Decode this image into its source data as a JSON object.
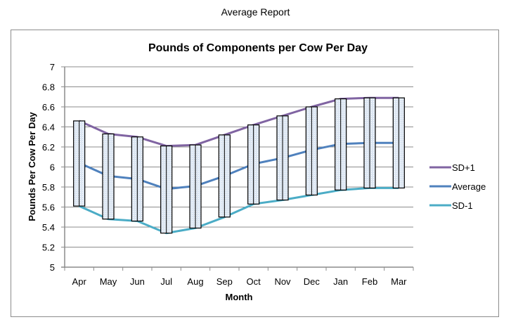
{
  "report_title": "Average Report",
  "chart_data": {
    "type": "line",
    "title": "Pounds of Components per Cow Per Day",
    "xlabel": "Month",
    "ylabel": "Pounds Per Cow Per Day",
    "ylim": [
      5,
      7
    ],
    "yticks": [
      5,
      5.2,
      5.4,
      5.6,
      5.8,
      6,
      6.2,
      6.4,
      6.6,
      6.8,
      7
    ],
    "ytick_labels": [
      "5",
      "5.2",
      "5.4",
      "5.6",
      "5.8",
      "6",
      "6.2",
      "6.4",
      "6.6",
      "6.8",
      "7"
    ],
    "grid": true,
    "legend_position": "right",
    "categories": [
      "Apr",
      "May",
      "Jun",
      "Jul",
      "Aug",
      "Sep",
      "Oct",
      "Nov",
      "Dec",
      "Jan",
      "Feb",
      "Mar"
    ],
    "series": [
      {
        "name": "SD+1",
        "color": "#8064A2",
        "values": [
          6.46,
          6.33,
          6.3,
          6.21,
          6.22,
          6.32,
          6.42,
          6.51,
          6.6,
          6.68,
          6.69,
          6.69
        ]
      },
      {
        "name": "Average",
        "color": "#4F81BD",
        "values": [
          6.04,
          5.91,
          5.88,
          5.78,
          5.81,
          5.91,
          6.03,
          6.09,
          6.17,
          6.23,
          6.24,
          6.24
        ]
      },
      {
        "name": "SD-1",
        "color": "#4BACC6",
        "values": [
          5.61,
          5.48,
          5.46,
          5.34,
          5.39,
          5.5,
          5.63,
          5.67,
          5.72,
          5.77,
          5.79,
          5.79
        ]
      }
    ],
    "range_bars": {
      "description": "Hatched range boxes spanning SD-1 to SD+1 for each month",
      "fill_color": "#dce6f2",
      "border_color": "#000000"
    }
  }
}
